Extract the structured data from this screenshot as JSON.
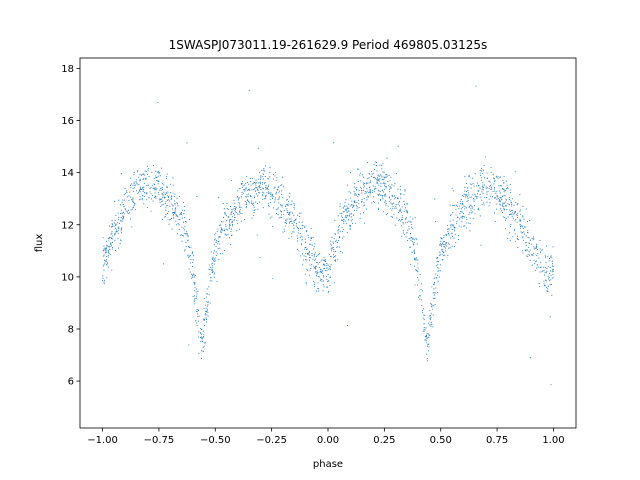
{
  "chart_data": {
    "type": "scatter",
    "title": "1SWASPJ073011.19-261629.9 Period 469805.03125s",
    "xlabel": "phase",
    "ylabel": "flux",
    "xlim": [
      -1.1,
      1.1
    ],
    "ylim": [
      4.2,
      18.4
    ],
    "x_ticks": [
      -1.0,
      -0.75,
      -0.5,
      -0.25,
      0.0,
      0.25,
      0.5,
      0.75,
      1.0
    ],
    "x_tick_labels": [
      "−1.00",
      "−0.75",
      "−0.50",
      "−0.25",
      "0.00",
      "0.25",
      "0.50",
      "0.75",
      "1.00"
    ],
    "y_ticks": [
      6,
      8,
      10,
      12,
      14,
      16,
      18
    ],
    "y_tick_labels": [
      "6",
      "8",
      "10",
      "12",
      "14",
      "16",
      "18"
    ],
    "grid": false,
    "marker_color": "#1f77b4",
    "series": [
      {
        "phase_curve": [
          {
            "phase": 0.0,
            "flux": 10.2
          },
          {
            "phase": 0.05,
            "flux": 11.8
          },
          {
            "phase": 0.1,
            "flux": 12.7
          },
          {
            "phase": 0.15,
            "flux": 13.3
          },
          {
            "phase": 0.2,
            "flux": 13.6
          },
          {
            "phase": 0.25,
            "flux": 13.5
          },
          {
            "phase": 0.3,
            "flux": 12.9
          },
          {
            "phase": 0.35,
            "flux": 12.2
          },
          {
            "phase": 0.38,
            "flux": 11.3
          },
          {
            "phase": 0.41,
            "flux": 9.6
          },
          {
            "phase": 0.43,
            "flux": 7.9
          },
          {
            "phase": 0.44,
            "flux": 7.4
          },
          {
            "phase": 0.45,
            "flux": 7.8
          },
          {
            "phase": 0.47,
            "flux": 9.5
          },
          {
            "phase": 0.5,
            "flux": 11.0
          },
          {
            "phase": 0.55,
            "flux": 12.0
          },
          {
            "phase": 0.6,
            "flux": 12.7
          },
          {
            "phase": 0.65,
            "flux": 13.2
          },
          {
            "phase": 0.7,
            "flux": 13.4
          },
          {
            "phase": 0.75,
            "flux": 13.2
          },
          {
            "phase": 0.8,
            "flux": 12.8
          },
          {
            "phase": 0.85,
            "flux": 12.0
          },
          {
            "phase": 0.9,
            "flux": 11.2
          },
          {
            "phase": 0.95,
            "flux": 10.4
          },
          {
            "phase": 1.0,
            "flux": 10.2
          }
        ],
        "x_range": [
          -1.0,
          1.0
        ],
        "scatter_sd": 0.45,
        "n_points": 2400
      }
    ]
  }
}
